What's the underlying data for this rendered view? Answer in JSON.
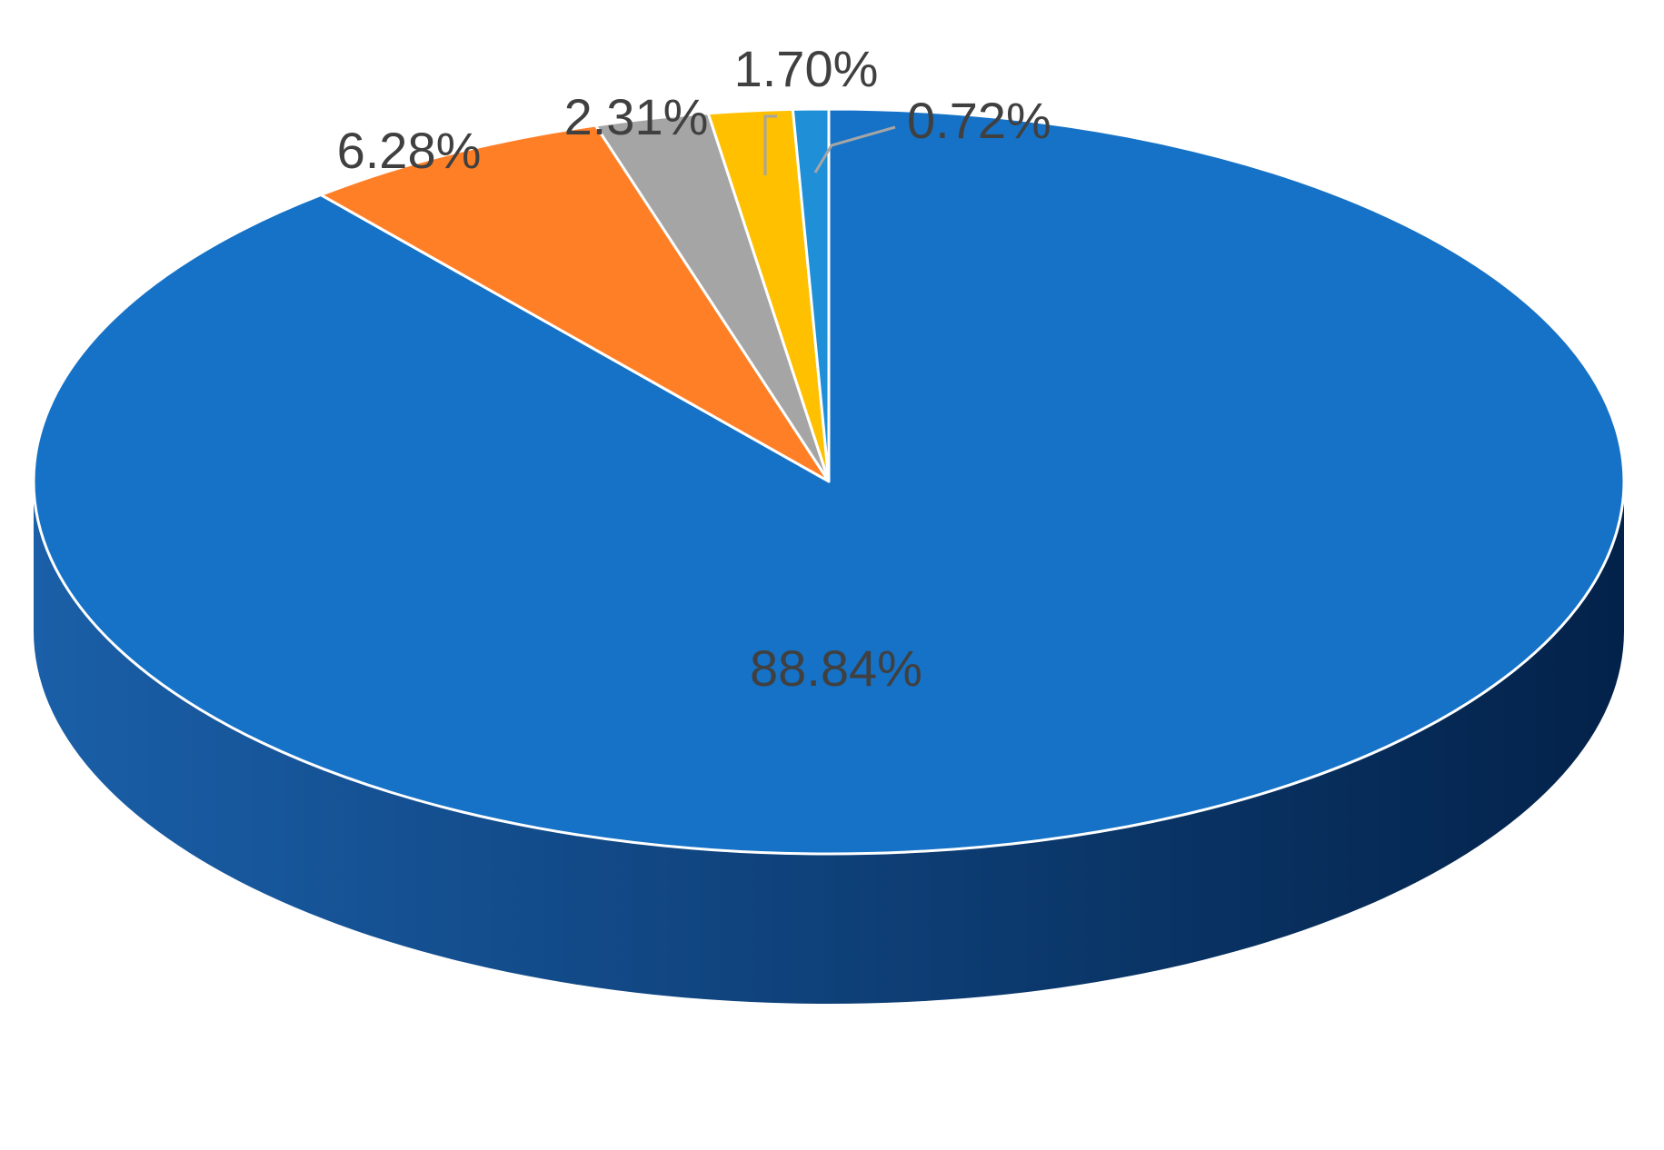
{
  "chart_data": {
    "type": "pie",
    "style": "3d",
    "title": "",
    "slices": [
      {
        "label": "88.84%",
        "value": 88.84,
        "color": "#1572C7"
      },
      {
        "label": "6.28%",
        "value": 6.28,
        "color": "#FF7F27"
      },
      {
        "label": "2.31%",
        "value": 2.31,
        "color": "#A5A5A5"
      },
      {
        "label": "1.70%",
        "value": 1.7,
        "color": "#FFC000"
      },
      {
        "label": "0.72%",
        "value": 0.72,
        "color": "#1F8FD8"
      }
    ],
    "side_color_light": "#1A5FA8",
    "side_color_dark": "#03224A",
    "legend": "none"
  }
}
